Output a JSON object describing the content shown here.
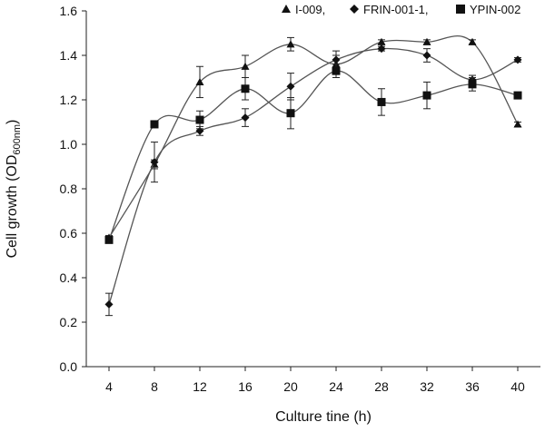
{
  "chart_data": {
    "type": "line",
    "title": "",
    "xlabel": "Culture tine (h)",
    "ylabel_main": "Cell growth (OD",
    "ylabel_sub": "600nm",
    "ylabel_tail": ")",
    "x": [
      4,
      8,
      12,
      16,
      20,
      24,
      28,
      32,
      36,
      40
    ],
    "x_tick_labels": [
      "4",
      "8",
      "12",
      "16",
      "20",
      "24",
      "28",
      "32",
      "36",
      "40"
    ],
    "ylim": [
      0,
      1.6
    ],
    "y_ticks": [
      0,
      0.2,
      0.4,
      0.6,
      0.8,
      1.0,
      1.2,
      1.4,
      1.6
    ],
    "y_tick_labels": [
      "0.0",
      "0.2",
      "0.4",
      "0.6",
      "0.8",
      "1.0",
      "1.2",
      "1.4",
      "1.6"
    ],
    "grid": false,
    "legend_position": "top-right",
    "series": [
      {
        "name": "I-009,",
        "marker": "triangle",
        "values": [
          0.58,
          0.91,
          1.28,
          1.35,
          1.45,
          1.36,
          1.46,
          1.46,
          1.46,
          1.09
        ],
        "errors": [
          0.01,
          0.02,
          0.07,
          0.05,
          0.03,
          0.04,
          0.01,
          0.01,
          0.01,
          0.01
        ]
      },
      {
        "name": "FRIN-001-1,",
        "marker": "diamond",
        "values": [
          0.28,
          0.92,
          1.06,
          1.12,
          1.26,
          1.38,
          1.43,
          1.4,
          1.29,
          1.38
        ],
        "errors": [
          0.05,
          0.09,
          0.02,
          0.04,
          0.06,
          0.04,
          0.01,
          0.03,
          0.02,
          0.01
        ]
      },
      {
        "name": "YPIN-002",
        "marker": "square",
        "values": [
          0.57,
          1.09,
          1.11,
          1.25,
          1.14,
          1.33,
          1.19,
          1.22,
          1.27,
          1.22
        ],
        "errors": [
          0.01,
          0.01,
          0.04,
          0.05,
          0.07,
          0.03,
          0.06,
          0.06,
          0.03,
          0.01
        ]
      }
    ]
  }
}
